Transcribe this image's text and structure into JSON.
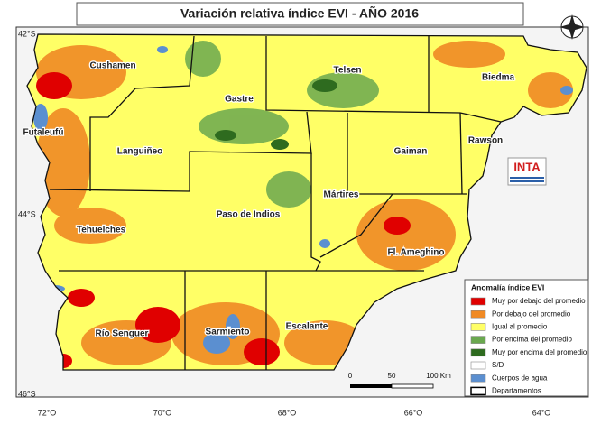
{
  "title": "Variación relativa índice EVI - AÑO 2016",
  "departments": [
    {
      "label": "Cushamen"
    },
    {
      "label": "Telsen"
    },
    {
      "label": "Biedma"
    },
    {
      "label": "Gastre"
    },
    {
      "label": "Futaleufú"
    },
    {
      "label": "Languiñeo"
    },
    {
      "label": "Gaiman"
    },
    {
      "label": "Rawson"
    },
    {
      "label": "Mártires"
    },
    {
      "label": "Paso de Indios"
    },
    {
      "label": "Tehuelches"
    },
    {
      "label": "Fl. Ameghino"
    },
    {
      "label": "Río Senguer"
    },
    {
      "label": "Sarmiento"
    },
    {
      "label": "Escalante"
    }
  ],
  "lat_labels": [
    "42°S",
    "44°S",
    "46°S"
  ],
  "lon_labels": [
    "72°O",
    "70°O",
    "68°O",
    "66°O",
    "64°O"
  ],
  "logo": "INTA",
  "legend": {
    "title": "Anomalía índice EVI",
    "items": [
      {
        "label": "Muy por debajo del promedio",
        "color": "#e00000"
      },
      {
        "label": "Por debajo del promedio",
        "color": "#f08a24"
      },
      {
        "label": "Igual al promedio",
        "color": "#ffff66"
      },
      {
        "label": "Por encima del promedio",
        "color": "#6aa84f"
      },
      {
        "label": "Muy por encima del promedio",
        "color": "#2e6b1f"
      },
      {
        "label": "S/D",
        "color": "#ffffff"
      },
      {
        "label": "Cuerpos de agua",
        "color": "#5b8fd0"
      },
      {
        "label": "Departamentos",
        "color": "none"
      }
    ]
  },
  "scale": {
    "labels": [
      "0",
      "50",
      "100 Km"
    ]
  }
}
